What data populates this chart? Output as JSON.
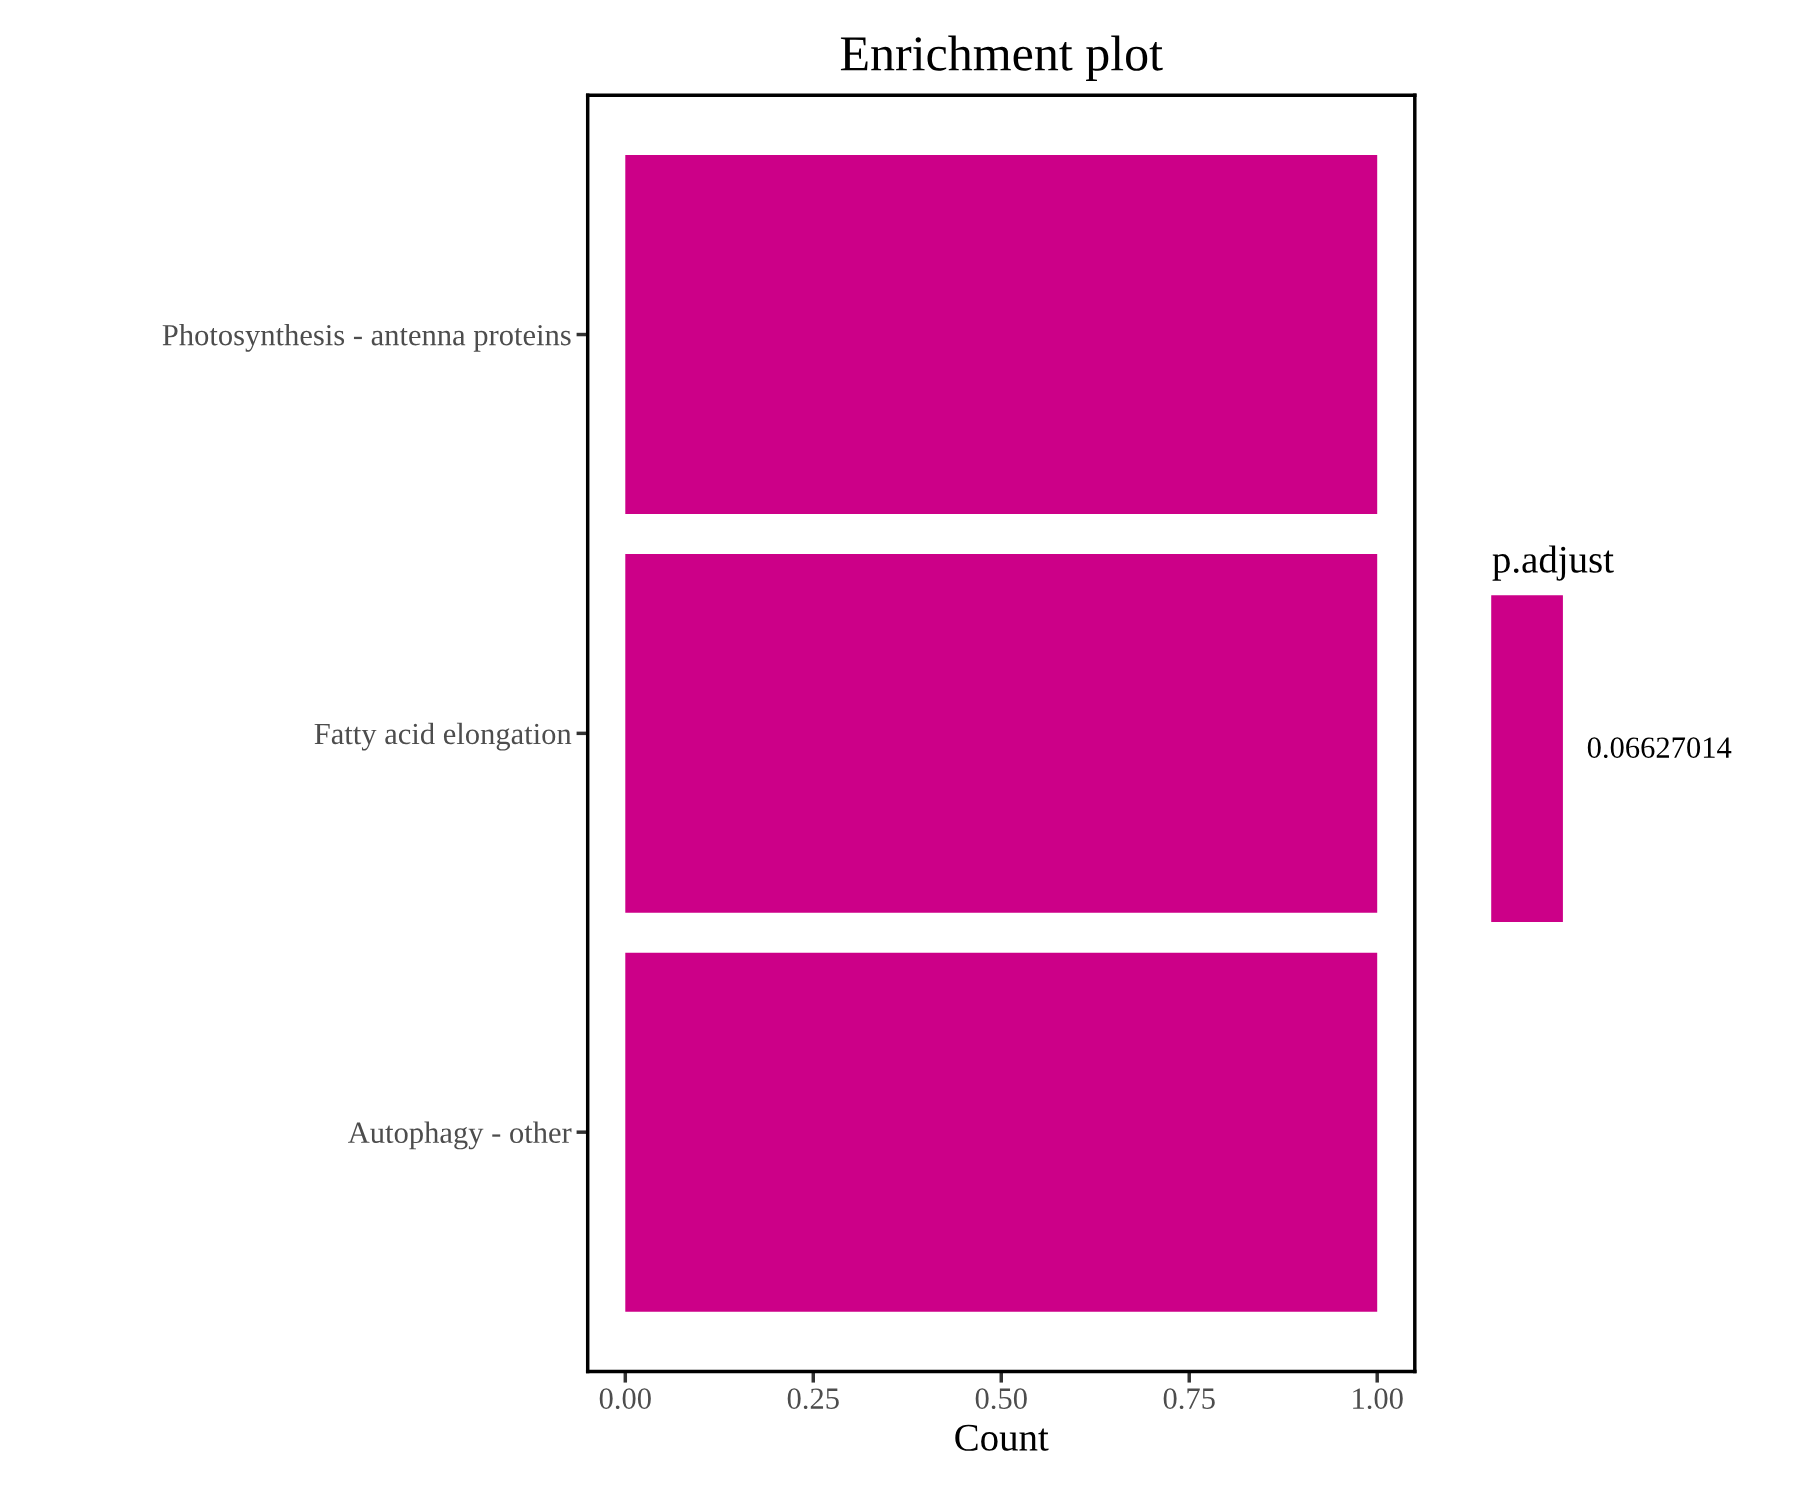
{
  "chart_data": {
    "type": "bar",
    "orientation": "horizontal",
    "title": "Enrichment plot",
    "xlabel": "Count",
    "legend_title": "p.adjust",
    "categories": [
      "Photosynthesis - antenna proteins",
      "Fatty acid elongation",
      "Autophagy - other"
    ],
    "series": [
      {
        "name": "0.06627014",
        "color": "#cc0088",
        "values": [
          1,
          1,
          1
        ]
      }
    ],
    "xlim": [
      -0.05,
      1.05
    ],
    "xticks": [
      {
        "value": 0,
        "label": "0.00"
      },
      {
        "value": 0.25,
        "label": "0.25"
      },
      {
        "value": 0.5,
        "label": "0.50"
      },
      {
        "value": 0.75,
        "label": "0.75"
      },
      {
        "value": 1,
        "label": "1.00"
      }
    ],
    "grid": false,
    "legend": "right"
  }
}
